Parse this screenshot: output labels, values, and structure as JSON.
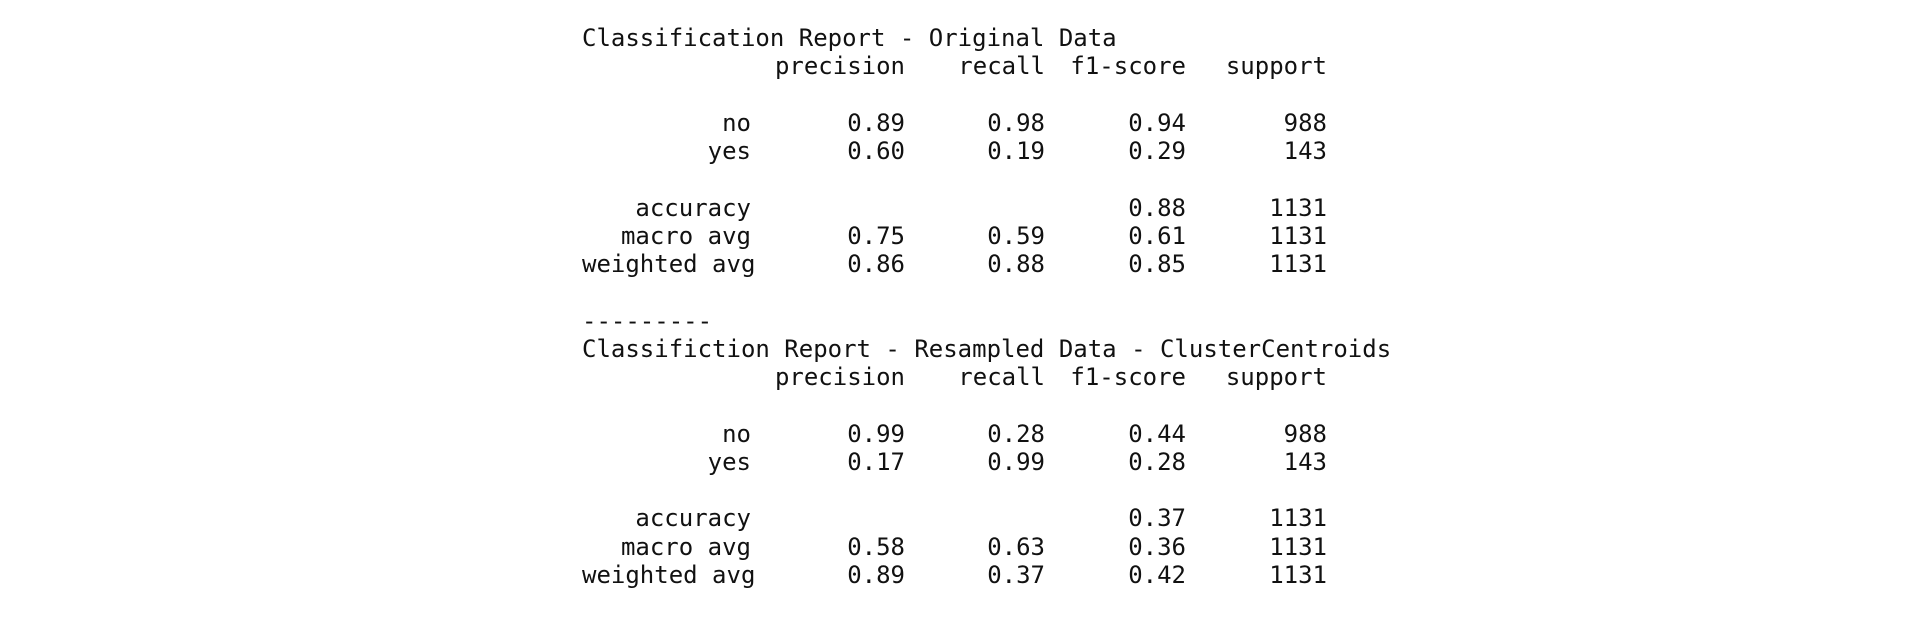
{
  "reports": [
    {
      "title": "Classification Report - Original Data",
      "headers": [
        "precision",
        "recall",
        "f1-score",
        "support"
      ],
      "class_rows": [
        {
          "label": "no",
          "precision": "0.89",
          "recall": "0.98",
          "f1": "0.94",
          "support": "988"
        },
        {
          "label": "yes",
          "precision": "0.60",
          "recall": "0.19",
          "f1": "0.29",
          "support": "143"
        }
      ],
      "summary_rows": [
        {
          "label": "accuracy",
          "precision": "",
          "recall": "",
          "f1": "0.88",
          "support": "1131"
        },
        {
          "label": "macro avg",
          "precision": "0.75",
          "recall": "0.59",
          "f1": "0.61",
          "support": "1131"
        },
        {
          "label": "weighted avg",
          "precision": "0.86",
          "recall": "0.88",
          "f1": "0.85",
          "support": "1131"
        }
      ]
    },
    {
      "title": "Classifiction Report - Resampled Data - ClusterCentroids",
      "headers": [
        "precision",
        "recall",
        "f1-score",
        "support"
      ],
      "class_rows": [
        {
          "label": "no",
          "precision": "0.99",
          "recall": "0.28",
          "f1": "0.44",
          "support": "988"
        },
        {
          "label": "yes",
          "precision": "0.17",
          "recall": "0.99",
          "f1": "0.28",
          "support": "143"
        }
      ],
      "summary_rows": [
        {
          "label": "accuracy",
          "precision": "",
          "recall": "",
          "f1": "0.37",
          "support": "1131"
        },
        {
          "label": "macro avg",
          "precision": "0.58",
          "recall": "0.63",
          "f1": "0.36",
          "support": "1131"
        },
        {
          "label": "weighted avg",
          "precision": "0.89",
          "recall": "0.37",
          "f1": "0.42",
          "support": "1131"
        }
      ]
    }
  ],
  "divider": "---------"
}
